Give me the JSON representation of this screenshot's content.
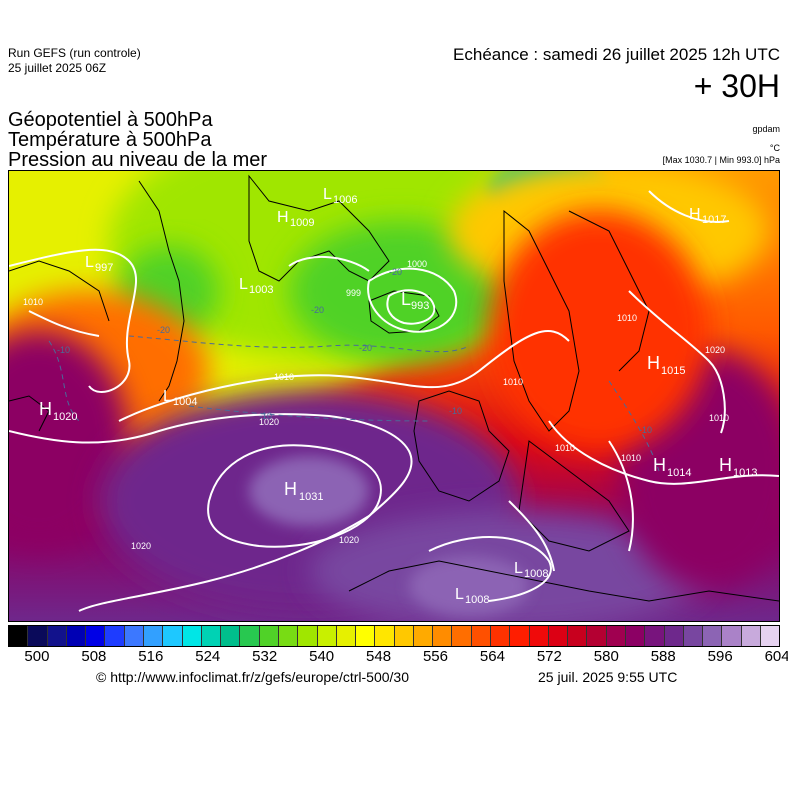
{
  "header": {
    "run_title": "Run GEFS (run controle)",
    "run_date": "25 juillet 2025 06Z",
    "valid_time": "Echéance : samedi 26 juillet 2025 12h UTC",
    "lead_time": "+ 30H"
  },
  "parameters": [
    "Géopotentiel à 500hPa",
    "Température à 500hPa",
    "Pression au niveau de la mer"
  ],
  "units": {
    "geopotential": "gpdam",
    "temperature": "°C",
    "pressure_summary": "[Max 1030.7 | Min 993.0] hPa"
  },
  "map": {
    "pressure_centers": [
      {
        "type": "H",
        "value": "1020"
      },
      {
        "type": "H",
        "value": "1009"
      },
      {
        "type": "H",
        "value": "1031"
      },
      {
        "type": "H",
        "value": "1015"
      },
      {
        "type": "H",
        "value": "1014"
      },
      {
        "type": "H",
        "value": "1013"
      },
      {
        "type": "H",
        "value": "1017"
      },
      {
        "type": "L",
        "value": "997"
      },
      {
        "type": "L",
        "value": "1006"
      },
      {
        "type": "L",
        "value": "1003"
      },
      {
        "type": "L",
        "value": "993"
      },
      {
        "type": "L",
        "value": "1004"
      },
      {
        "type": "L",
        "value": "1008"
      },
      {
        "type": "L",
        "value": "1008"
      }
    ],
    "isobar_labels": [
      "1010",
      "1020",
      "1020",
      "1020",
      "1000",
      "999",
      "1010",
      "1010",
      "1010",
      "1020",
      "1010",
      "1010",
      "1010"
    ],
    "temperature_labels": [
      "-20",
      "-20",
      "-20",
      "-20",
      "-10",
      "-10",
      "-10",
      "-10"
    ]
  },
  "colorbar": {
    "colors": [
      "#000000",
      "#0a0a5a",
      "#12128c",
      "#0000b4",
      "#0000e6",
      "#1e3cff",
      "#3c78ff",
      "#32a0ff",
      "#1ec8ff",
      "#00e6e6",
      "#00d2b4",
      "#00be8c",
      "#28c850",
      "#50d228",
      "#78dc14",
      "#a0e600",
      "#c8f000",
      "#e6f000",
      "#ffff00",
      "#ffe600",
      "#ffc800",
      "#ffaa00",
      "#ff8c00",
      "#ff6e00",
      "#ff5000",
      "#ff3200",
      "#ff1e00",
      "#f00a0a",
      "#dc0014",
      "#c8001e",
      "#b40032",
      "#a00050",
      "#8c0064",
      "#78147d",
      "#6e288c",
      "#7846a0",
      "#8c64b4",
      "#aa82c8",
      "#c8aadc",
      "#e6d2f0"
    ],
    "ticks": [
      "500",
      "508",
      "516",
      "524",
      "532",
      "540",
      "548",
      "556",
      "564",
      "572",
      "580",
      "588",
      "596",
      "604"
    ]
  },
  "footer": {
    "copyright": "© http://www.infoclimat.fr/z/gefs/europe/ctrl-500/30",
    "issue_time": "25 juil. 2025  9:55 UTC"
  }
}
